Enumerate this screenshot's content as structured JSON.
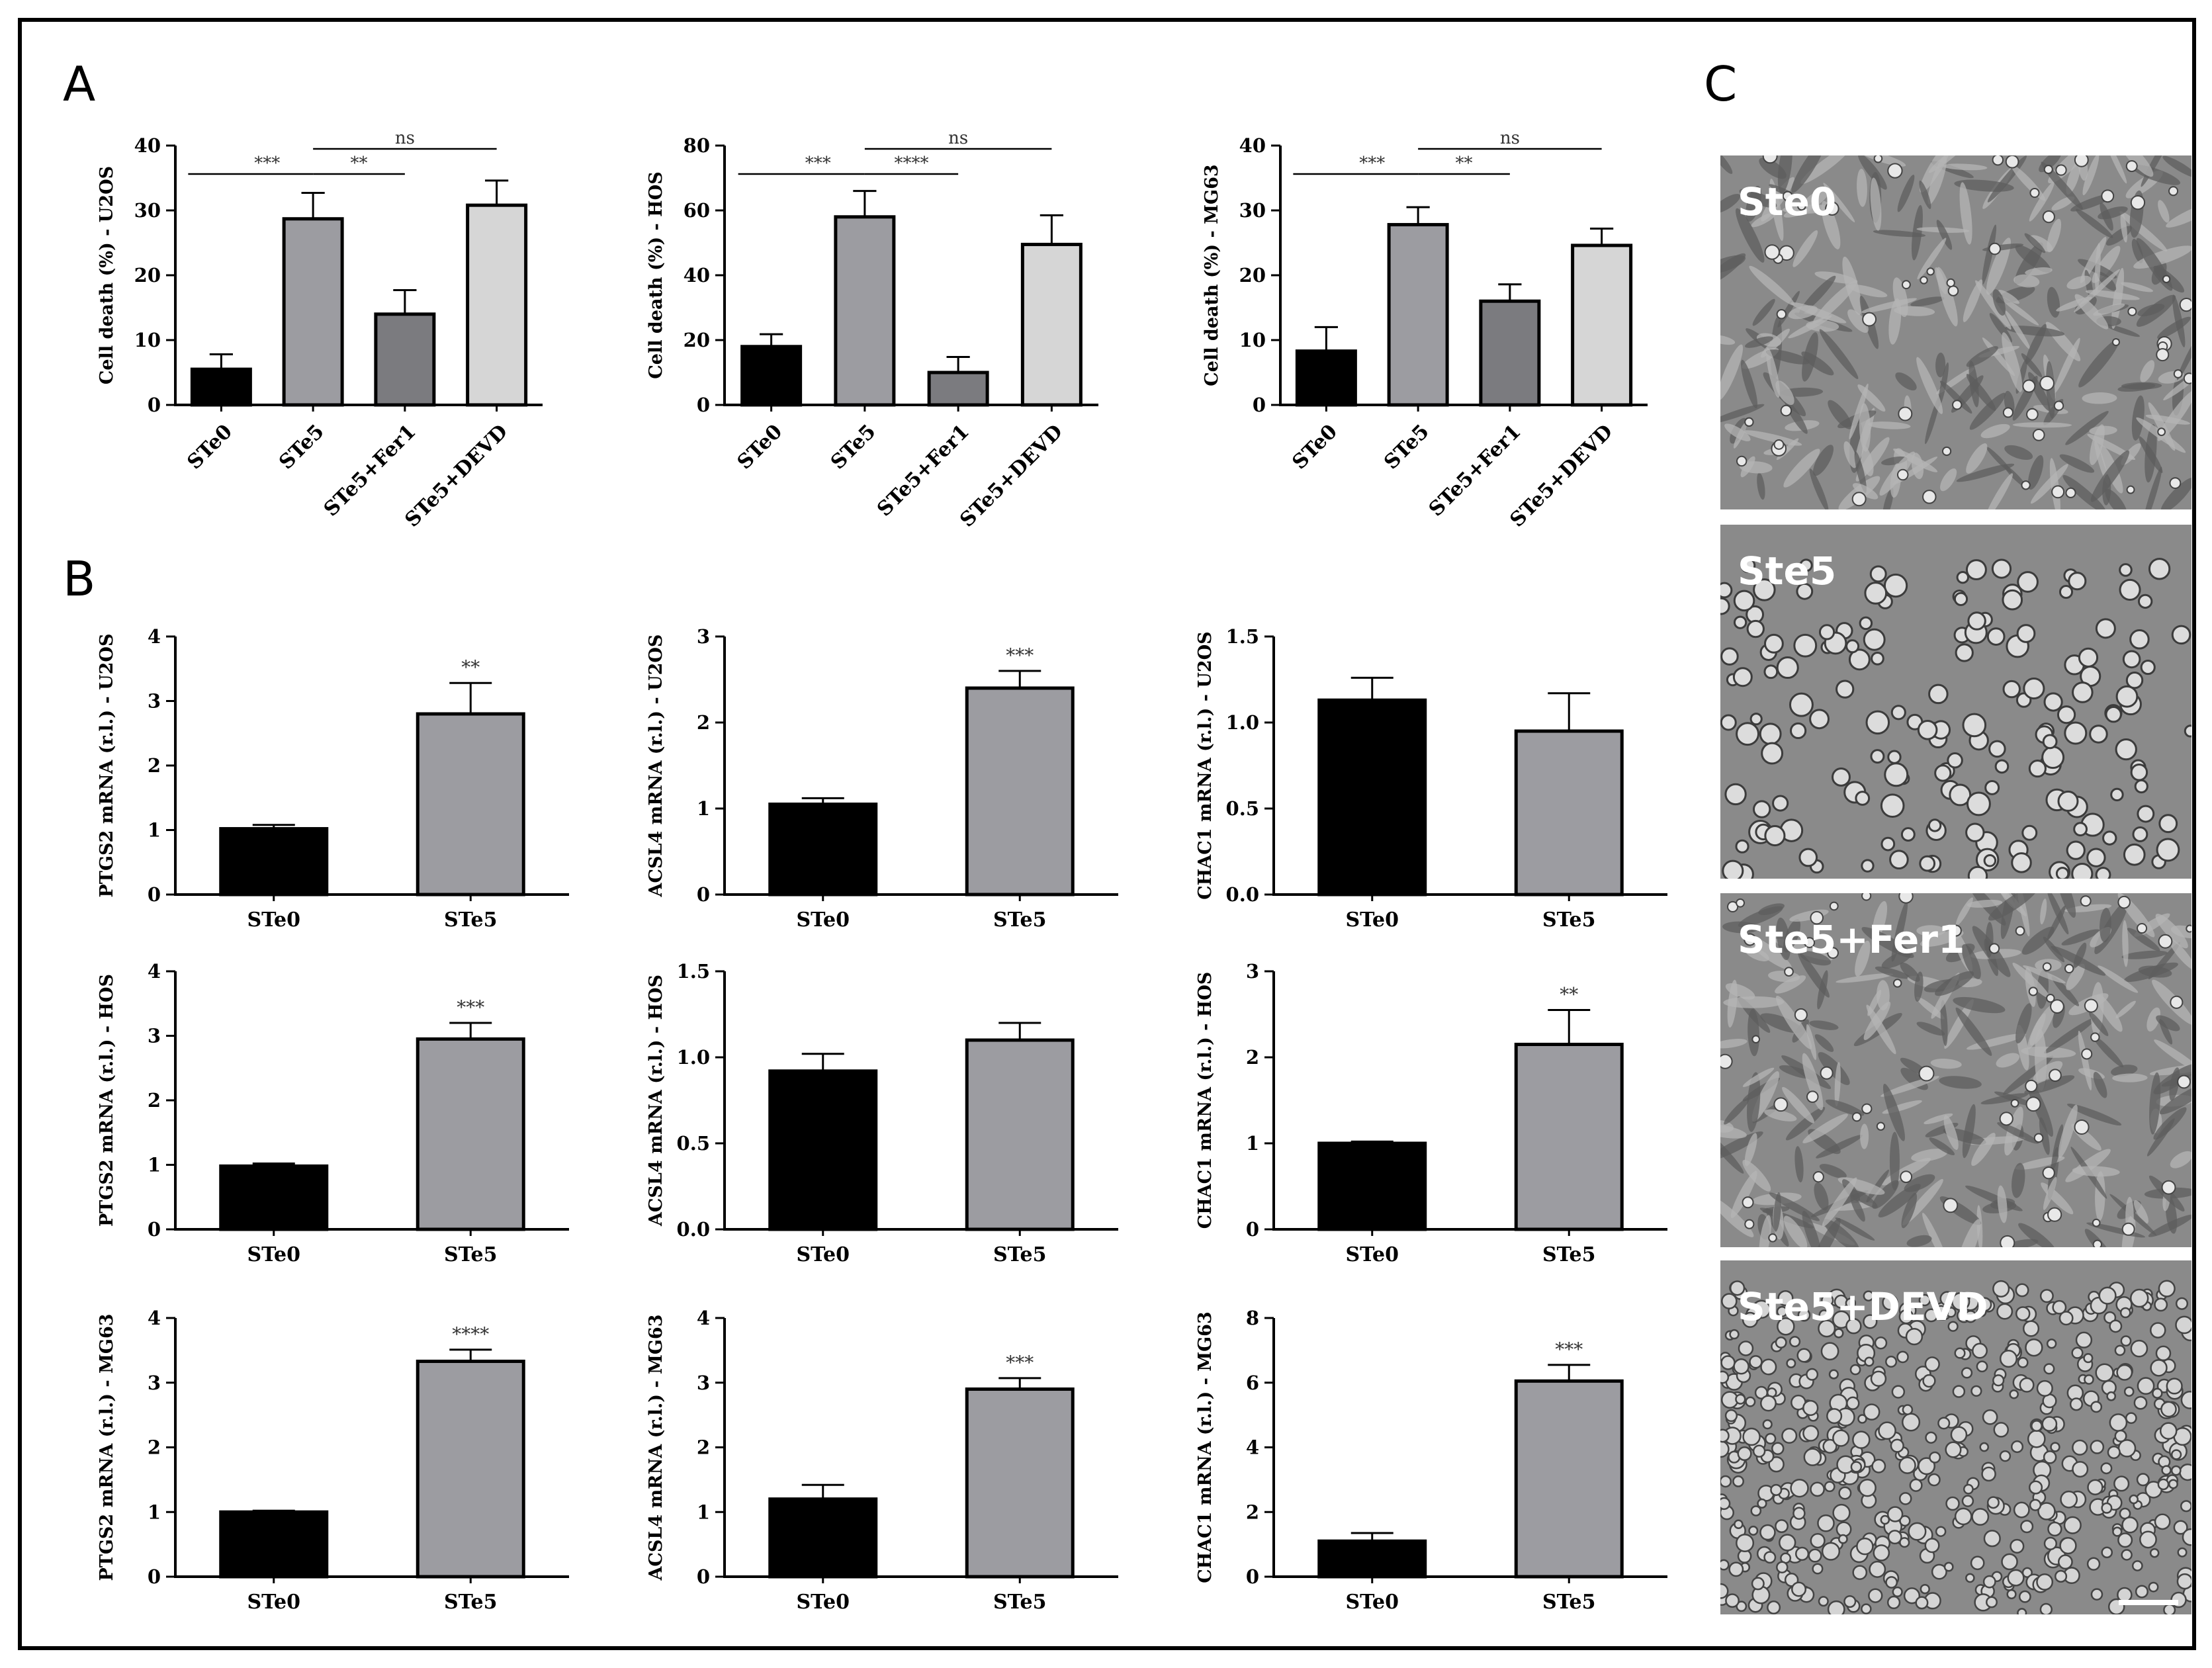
{
  "panels": [
    "A",
    "B",
    "C"
  ],
  "bar_colors": {
    "black": "#000000",
    "mid": "#9c9ca1",
    "dark": "#7b7b7f",
    "light": "#d6d6d6"
  },
  "chart_data": [
    {
      "type": "bar",
      "panel": "A",
      "ylabel": "Cell death (%) - U2OS",
      "categories": [
        "STe0",
        "STe5",
        "STe5+Fer1",
        "STe5+DEVD"
      ],
      "values": [
        5.5,
        28.7,
        14,
        30.8
      ],
      "errors": [
        2.3,
        4,
        3.7,
        3.8
      ],
      "ylim": [
        0,
        40
      ],
      "yticks": [
        "0",
        "10",
        "20",
        "30",
        "40"
      ],
      "colors": [
        "#000000",
        "#9c9ca1",
        "#7b7b7f",
        "#d6d6d6"
      ],
      "brackets": [
        {
          "from": 0,
          "to": 1,
          "label": "***"
        },
        {
          "from": 1,
          "to": 2,
          "label": "**"
        },
        {
          "from": 1,
          "to": 3,
          "label": "ns"
        }
      ]
    },
    {
      "type": "bar",
      "panel": "A",
      "ylabel": "Cell death (%) - HOS",
      "categories": [
        "STe0",
        "STe5",
        "STe5+Fer1",
        "STe5+DEVD"
      ],
      "values": [
        18,
        58,
        10,
        49.5
      ],
      "errors": [
        3.8,
        8,
        4.8,
        9
      ],
      "ylim": [
        0,
        80
      ],
      "yticks": [
        "0",
        "20",
        "40",
        "60",
        "80"
      ],
      "colors": [
        "#000000",
        "#9c9ca1",
        "#7b7b7f",
        "#d6d6d6"
      ],
      "brackets": [
        {
          "from": 0,
          "to": 1,
          "label": "***"
        },
        {
          "from": 1,
          "to": 2,
          "label": "****"
        },
        {
          "from": 1,
          "to": 3,
          "label": "ns"
        }
      ]
    },
    {
      "type": "bar",
      "panel": "A",
      "ylabel": "Cell death (%) - MG63",
      "categories": [
        "STe0",
        "STe5",
        "STe5+Fer1",
        "STe5+DEVD"
      ],
      "values": [
        8.3,
        27.8,
        16,
        24.6
      ],
      "errors": [
        3.7,
        2.7,
        2.6,
        2.6
      ],
      "ylim": [
        0,
        40
      ],
      "yticks": [
        "0",
        "10",
        "20",
        "30",
        "40"
      ],
      "colors": [
        "#000000",
        "#9c9ca1",
        "#7b7b7f",
        "#d6d6d6"
      ],
      "brackets": [
        {
          "from": 0,
          "to": 1,
          "label": "***"
        },
        {
          "from": 1,
          "to": 2,
          "label": "**"
        },
        {
          "from": 1,
          "to": 3,
          "label": "ns"
        }
      ]
    },
    {
      "type": "bar",
      "panel": "B",
      "ylabel": "PTGS2 mRNA (r.l.) - U2OS",
      "categories": [
        "STe0",
        "STe5"
      ],
      "values": [
        1.02,
        2.8
      ],
      "errors": [
        0.06,
        0.48
      ],
      "ylim": [
        0,
        4
      ],
      "yticks": [
        "0",
        "1",
        "2",
        "3",
        "4"
      ],
      "sig": [
        "",
        "**"
      ],
      "colors": [
        "#000000",
        "#9c9ca1"
      ]
    },
    {
      "type": "bar",
      "panel": "B",
      "ylabel": "ACSL4 mRNA (r.l.) - U2OS",
      "categories": [
        "STe0",
        "STe5"
      ],
      "values": [
        1.05,
        2.4
      ],
      "errors": [
        0.07,
        0.2
      ],
      "ylim": [
        0,
        3
      ],
      "yticks": [
        "0",
        "1",
        "2",
        "3"
      ],
      "sig": [
        "",
        "***"
      ],
      "colors": [
        "#000000",
        "#9c9ca1"
      ]
    },
    {
      "type": "bar",
      "panel": "B",
      "ylabel": "CHAC1 mRNA (r.l.) - U2OS",
      "categories": [
        "STe0",
        "STe5"
      ],
      "values": [
        1.13,
        0.95
      ],
      "errors": [
        0.13,
        0.22
      ],
      "ylim": [
        0,
        1.5
      ],
      "yticks": [
        "0.0",
        "0.5",
        "1.0",
        "1.5"
      ],
      "sig": [
        "",
        ""
      ],
      "colors": [
        "#000000",
        "#9c9ca1"
      ]
    },
    {
      "type": "bar",
      "panel": "B",
      "ylabel": "PTGS2 mRNA (r.l.) - HOS",
      "categories": [
        "STe0",
        "STe5"
      ],
      "values": [
        0.98,
        2.95
      ],
      "errors": [
        0.04,
        0.25
      ],
      "ylim": [
        0,
        4
      ],
      "yticks": [
        "0",
        "1",
        "2",
        "3",
        "4"
      ],
      "sig": [
        "",
        "***"
      ],
      "colors": [
        "#000000",
        "#9c9ca1"
      ]
    },
    {
      "type": "bar",
      "panel": "B",
      "ylabel": "ACSL4 mRNA (r.l.) - HOS",
      "categories": [
        "STe0",
        "STe5"
      ],
      "values": [
        0.92,
        1.1
      ],
      "errors": [
        0.1,
        0.1
      ],
      "ylim": [
        0,
        1.5
      ],
      "yticks": [
        "0.0",
        "0.5",
        "1.0",
        "1.5"
      ],
      "sig": [
        "",
        ""
      ],
      "colors": [
        "#000000",
        "#9c9ca1"
      ]
    },
    {
      "type": "bar",
      "panel": "B",
      "ylabel": "CHAC1 mRNA (r.l.) - HOS",
      "categories": [
        "STe0",
        "STe5"
      ],
      "values": [
        1.0,
        2.15
      ],
      "errors": [
        0.02,
        0.4
      ],
      "ylim": [
        0,
        3
      ],
      "yticks": [
        "0",
        "1",
        "2",
        "3"
      ],
      "sig": [
        "",
        "**"
      ],
      "colors": [
        "#000000",
        "#9c9ca1"
      ]
    },
    {
      "type": "bar",
      "panel": "B",
      "ylabel": "PTGS2 mRNA (r.l.) - MG63",
      "categories": [
        "STe0",
        "STe5"
      ],
      "values": [
        1.0,
        3.33
      ],
      "errors": [
        0.02,
        0.18
      ],
      "ylim": [
        0,
        4
      ],
      "yticks": [
        "0",
        "1",
        "2",
        "3",
        "4"
      ],
      "sig": [
        "",
        "****"
      ],
      "colors": [
        "#000000",
        "#9c9ca1"
      ]
    },
    {
      "type": "bar",
      "panel": "B",
      "ylabel": "ACSL4 mRNA (r.l.) - MG63",
      "categories": [
        "STe0",
        "STe5"
      ],
      "values": [
        1.2,
        2.9
      ],
      "errors": [
        0.22,
        0.17
      ],
      "ylim": [
        0,
        4
      ],
      "yticks": [
        "0",
        "1",
        "2",
        "3",
        "4"
      ],
      "sig": [
        "",
        "***"
      ],
      "colors": [
        "#000000",
        "#9c9ca1"
      ]
    },
    {
      "type": "bar",
      "panel": "B",
      "ylabel": "CHAC1 mRNA (r.l.) - MG63",
      "categories": [
        "STe0",
        "STe5"
      ],
      "values": [
        1.1,
        6.05
      ],
      "errors": [
        0.25,
        0.5
      ],
      "ylim": [
        0,
        8
      ],
      "yticks": [
        "0",
        "2",
        "4",
        "6",
        "8"
      ],
      "sig": [
        "",
        "***"
      ],
      "colors": [
        "#000000",
        "#9c9ca1"
      ]
    }
  ],
  "micrographs": [
    {
      "label": "Ste0",
      "style": "spread"
    },
    {
      "label": "Ste5",
      "style": "round"
    },
    {
      "label": "Ste5+Fer1",
      "style": "spread"
    },
    {
      "label": "Ste5+DEVD",
      "style": "dense"
    }
  ]
}
